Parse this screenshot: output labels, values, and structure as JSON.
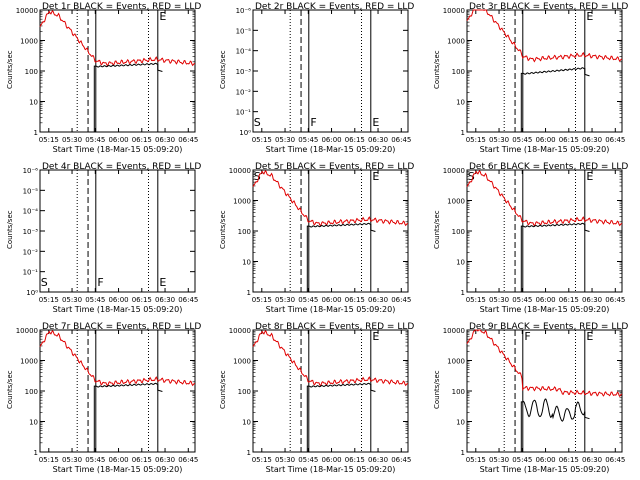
{
  "figure": {
    "type": "grid",
    "rows": 3,
    "cols": 3
  },
  "colors": {
    "events": "#000000",
    "lld": "#e00000",
    "axes": "#000000",
    "background": "#ffffff"
  },
  "chart_data": [
    {
      "type": "line",
      "title": "Det 1r BLACK = Events, RED = LLD",
      "ylabel": "Counts/sec",
      "xlabel": "Start Time (18-Mar-15 05:09:20)",
      "x_ticks": [
        "05:15",
        "05:30",
        "05:45",
        "06:00",
        "06:15",
        "06:30",
        "06:45"
      ],
      "y_scale": "log",
      "y_ticks": [
        "1",
        "10",
        "100",
        "1000",
        "10000"
      ],
      "markers": [
        "",
        "",
        "E"
      ],
      "empty": false,
      "variant": "normal"
    },
    {
      "type": "line",
      "title": "Det 2r BLACK = Events, RED = LLD",
      "ylabel": "Counts/sec",
      "xlabel": "Start Time (18-Mar-15 05:09:20)",
      "x_ticks": [
        "05:15",
        "05:30",
        "05:45",
        "06:00",
        "06:15",
        "06:30",
        "06:45"
      ],
      "y_scale": "log",
      "y_ticks": [
        "10⁰",
        "10⁻¹",
        "10⁻²",
        "10⁻³",
        "10⁻⁴",
        "10⁻⁵",
        "10⁻⁶"
      ],
      "markers": [
        "S",
        "F",
        "E"
      ],
      "empty": true,
      "variant": "none"
    },
    {
      "type": "line",
      "title": "Det 3r BLACK = Events, RED = LLD",
      "ylabel": "Counts/sec",
      "xlabel": "Start Time (18-Mar-15 05:09:20)",
      "x_ticks": [
        "05:15",
        "05:30",
        "05:45",
        "06:00",
        "06:15",
        "06:30",
        "06:45"
      ],
      "y_scale": "log",
      "y_ticks": [
        "1",
        "10",
        "100",
        "1000",
        "10000"
      ],
      "markers": [
        "",
        "",
        "E"
      ],
      "empty": false,
      "variant": "high"
    },
    {
      "type": "line",
      "title": "Det 4r BLACK = Events, RED = LLD",
      "ylabel": "Counts/sec",
      "xlabel": "Start Time (18-Mar-15 05:09:20)",
      "x_ticks": [
        "05:15",
        "05:30",
        "05:45",
        "06:00",
        "06:15",
        "06:30",
        "06:45"
      ],
      "y_scale": "log",
      "y_ticks": [
        "10⁰",
        "10⁻¹",
        "10⁻²",
        "10⁻³",
        "10⁻⁴",
        "10⁻⁵",
        "10⁻⁶"
      ],
      "markers": [
        "S",
        "F",
        "E"
      ],
      "empty": true,
      "variant": "none"
    },
    {
      "type": "line",
      "title": "Det 5r BLACK = Events, RED = LLD",
      "ylabel": "Counts/sec",
      "xlabel": "Start Time (18-Mar-15 05:09:20)",
      "x_ticks": [
        "05:15",
        "05:30",
        "05:45",
        "06:00",
        "06:15",
        "06:30",
        "06:45"
      ],
      "y_scale": "log",
      "y_ticks": [
        "1",
        "10",
        "100",
        "1000",
        "10000"
      ],
      "markers": [
        "S",
        "",
        "E"
      ],
      "empty": false,
      "variant": "normal"
    },
    {
      "type": "line",
      "title": "Det 6r BLACK = Events, RED = LLD",
      "ylabel": "Counts/sec",
      "xlabel": "Start Time (18-Mar-15 05:09:20)",
      "x_ticks": [
        "05:15",
        "05:30",
        "05:45",
        "06:00",
        "06:15",
        "06:30",
        "06:45"
      ],
      "y_scale": "log",
      "y_ticks": [
        "1",
        "10",
        "100",
        "1000",
        "10000"
      ],
      "markers": [
        "S",
        "",
        "E"
      ],
      "empty": false,
      "variant": "normal"
    },
    {
      "type": "line",
      "title": "Det 7r BLACK = Events, RED = LLD",
      "ylabel": "Counts/sec",
      "xlabel": "Start Time (18-Mar-15 05:09:20)",
      "x_ticks": [
        "05:15",
        "05:30",
        "05:45",
        "06:00",
        "06:15",
        "06:30",
        "06:45"
      ],
      "y_scale": "log",
      "y_ticks": [
        "1",
        "10",
        "100",
        "1000",
        "10000"
      ],
      "markers": [
        "",
        "",
        ""
      ],
      "empty": false,
      "variant": "normal"
    },
    {
      "type": "line",
      "title": "Det 8r BLACK = Events, RED = LLD",
      "ylabel": "Counts/sec",
      "xlabel": "Start Time (18-Mar-15 05:09:20)",
      "x_ticks": [
        "05:15",
        "05:30",
        "05:45",
        "06:00",
        "06:15",
        "06:30",
        "06:45"
      ],
      "y_scale": "log",
      "y_ticks": [
        "1",
        "10",
        "100",
        "1000",
        "10000"
      ],
      "markers": [
        "",
        "",
        "E"
      ],
      "empty": false,
      "variant": "normal"
    },
    {
      "type": "line",
      "title": "Det 9r BLACK = Events, RED = LLD",
      "ylabel": "Counts/sec",
      "xlabel": "Start Time (18-Mar-15 05:09:20)",
      "x_ticks": [
        "05:15",
        "05:30",
        "05:45",
        "06:00",
        "06:15",
        "06:30",
        "06:45"
      ],
      "y_scale": "log",
      "y_ticks": [
        "1",
        "10",
        "100",
        "1000",
        "10000"
      ],
      "markers": [
        "",
        "F",
        "E"
      ],
      "empty": false,
      "variant": "noisy"
    }
  ]
}
